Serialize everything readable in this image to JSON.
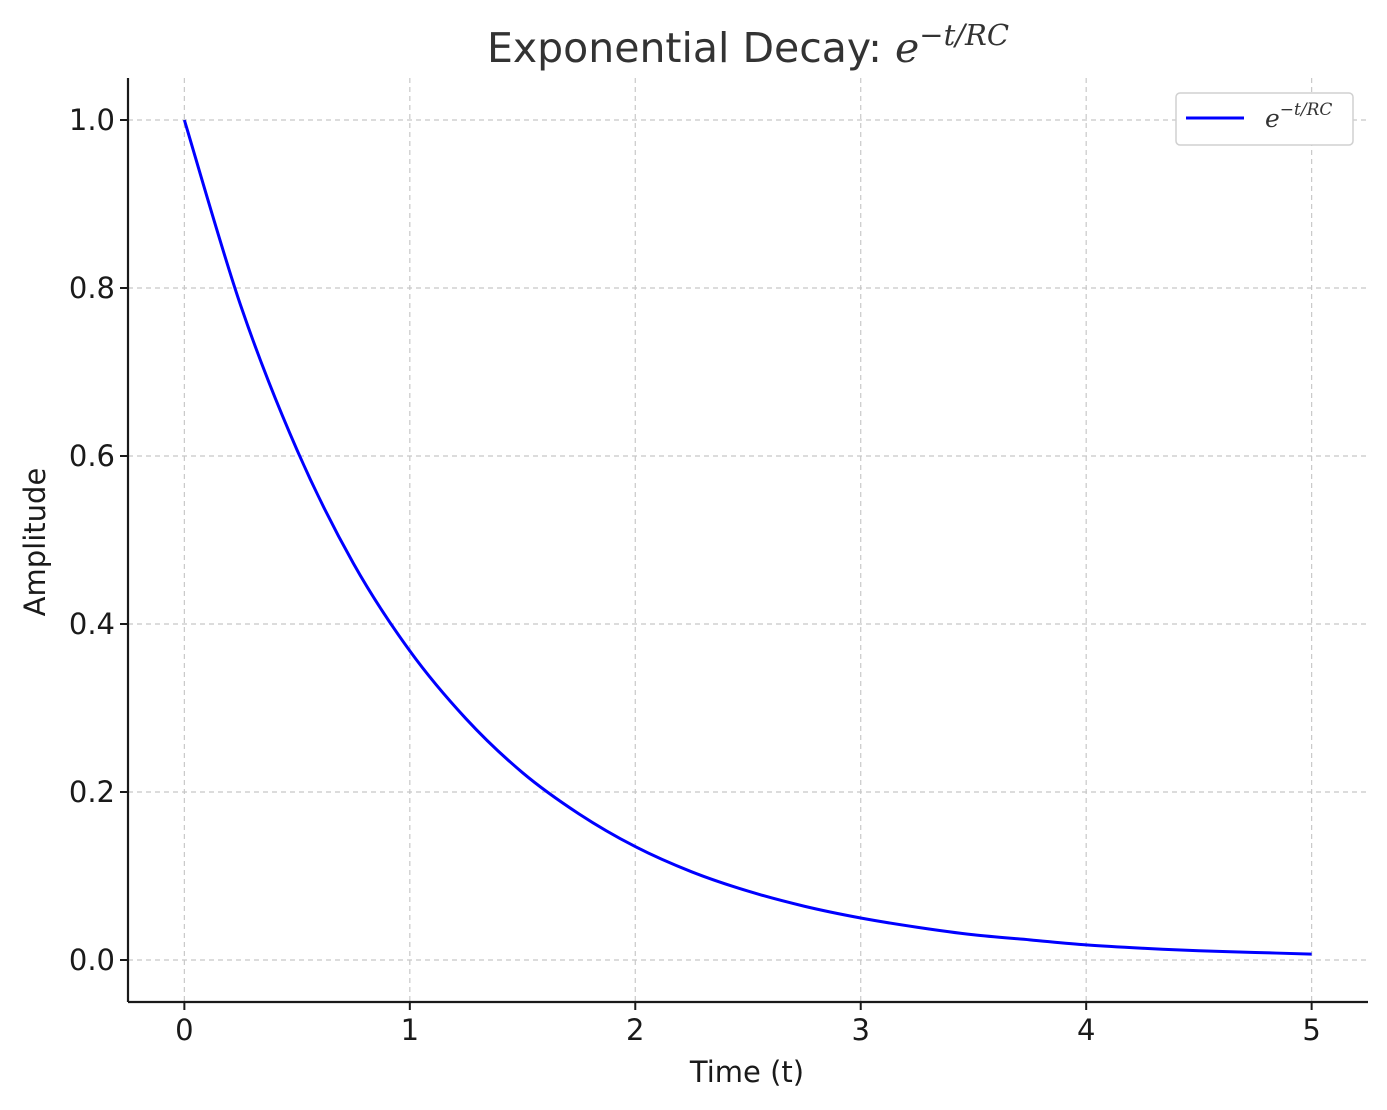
{
  "chart_data": {
    "type": "line",
    "title": {
      "prefix": "Exponential Decay: ",
      "base": "e",
      "exponent": "−t/RC"
    },
    "xlabel": "Time (t)",
    "ylabel": "Amplitude",
    "xlim": [
      -0.25,
      5.25
    ],
    "ylim": [
      -0.05,
      1.05
    ],
    "x_ticks": [
      0,
      1,
      2,
      3,
      4,
      5
    ],
    "x_tick_labels": [
      "0",
      "1",
      "2",
      "3",
      "4",
      "5"
    ],
    "y_ticks": [
      0.0,
      0.2,
      0.4,
      0.6,
      0.8,
      1.0
    ],
    "y_tick_labels": [
      "0.0",
      "0.2",
      "0.4",
      "0.6",
      "0.8",
      "1.0"
    ],
    "grid": true,
    "legend_position": "upper right",
    "series": [
      {
        "name": {
          "base": "e",
          "exponent": "−t/RC"
        },
        "color": "#0000ff",
        "x": [
          0,
          0.25,
          0.5,
          0.75,
          1,
          1.25,
          1.5,
          1.75,
          2,
          2.25,
          2.5,
          2.75,
          3,
          3.25,
          3.5,
          3.75,
          4,
          4.25,
          4.5,
          4.75,
          5
        ],
        "y": [
          1.0,
          0.779,
          0.607,
          0.472,
          0.368,
          0.287,
          0.223,
          0.174,
          0.135,
          0.105,
          0.082,
          0.064,
          0.05,
          0.039,
          0.03,
          0.024,
          0.018,
          0.014,
          0.011,
          0.009,
          0.007
        ]
      }
    ]
  }
}
